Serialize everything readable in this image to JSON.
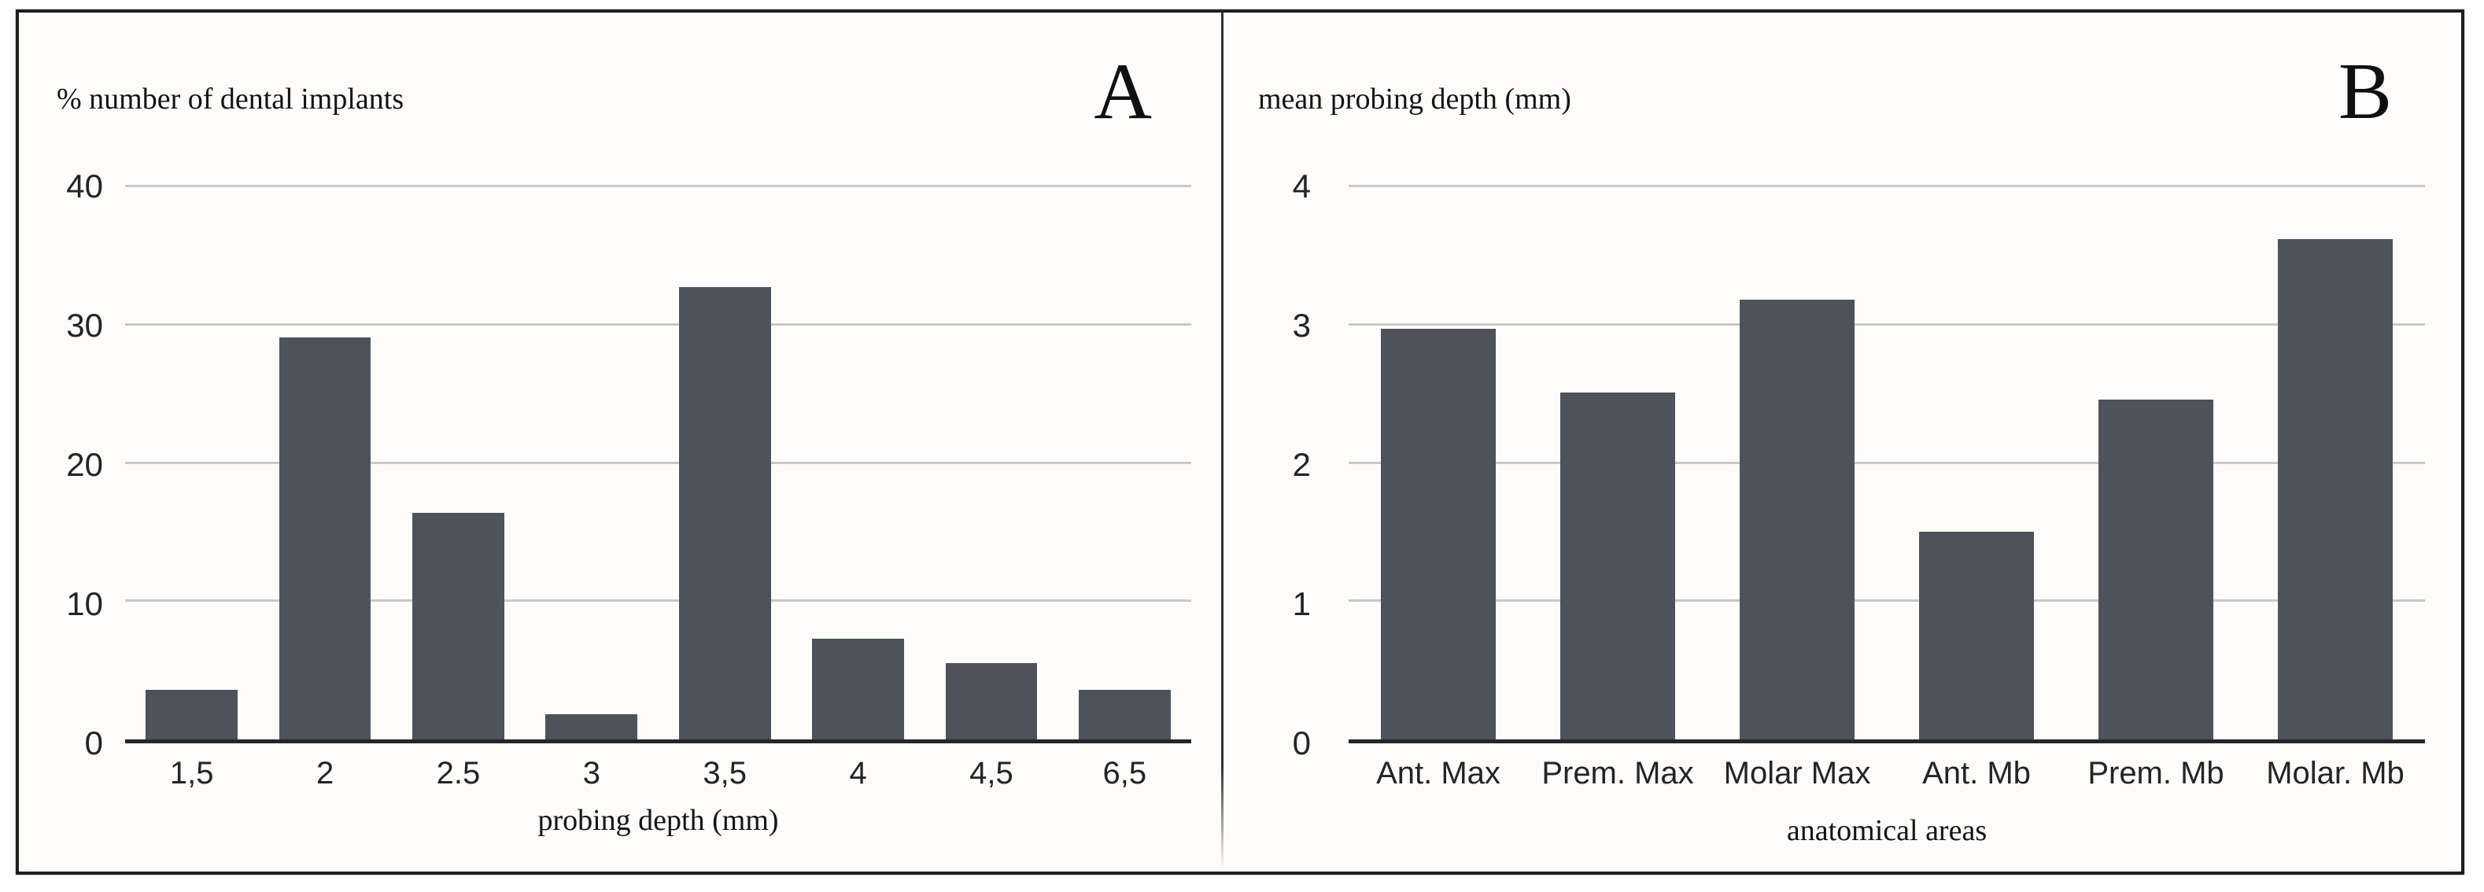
{
  "figure": {
    "background": "#fdfcfa",
    "frame_border_color": "#1f1f1f",
    "divider_color": "#2f2f2f"
  },
  "colors": {
    "bar": "#4d525b",
    "gridline": "#c9c9c9",
    "baseline": "#262626",
    "text": "#242424"
  },
  "chart_data": [
    {
      "type": "bar",
      "panel_label": "A",
      "ylabel": "% number of dental implants",
      "xlabel": "probing depth (mm)",
      "categories": [
        "1,5",
        "2",
        "2.5",
        "3",
        "3,5",
        "4",
        "4,5",
        "6,5"
      ],
      "values": [
        3.6,
        29.1,
        16.4,
        1.8,
        32.7,
        7.3,
        5.5,
        3.6
      ],
      "ylim": [
        0,
        40
      ],
      "yticks": [
        0,
        10,
        20,
        30,
        40
      ],
      "grid": true,
      "legend": false,
      "bar_color": "#4d525b"
    },
    {
      "type": "bar",
      "panel_label": "B",
      "ylabel": "mean probing depth (mm)",
      "xlabel": "anatomical areas",
      "categories": [
        "Ant. Max",
        "Prem. Max",
        "Molar Max",
        "Ant. Mb",
        "Prem. Mb",
        "Molar. Mb"
      ],
      "values": [
        2.97,
        2.51,
        3.18,
        1.5,
        2.46,
        3.62
      ],
      "ylim": [
        0,
        4
      ],
      "yticks": [
        0,
        1,
        2,
        3,
        4
      ],
      "grid": true,
      "legend": false,
      "bar_color": "#4d525b"
    }
  ]
}
